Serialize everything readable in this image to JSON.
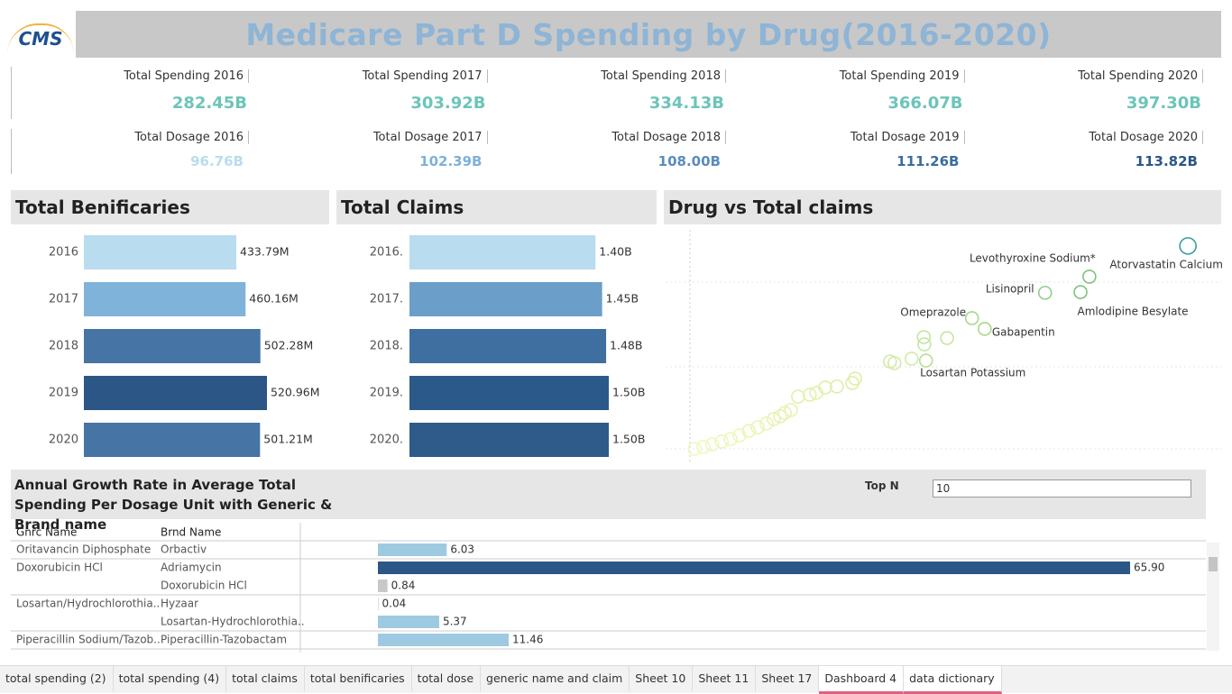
{
  "header": {
    "logo": "CMS",
    "title": "Medicare Part D Spending by Drug(2016-2020)"
  },
  "kpis": {
    "spending": {
      "labels": [
        "Total Spending 2016",
        "Total Spending 2017",
        "Total Spending 2018",
        "Total Spending 2019",
        "Total Spending 2020"
      ],
      "values": [
        "282.45B",
        "303.92B",
        "334.13B",
        "366.07B",
        "397.30B"
      ],
      "color": "#6cc5b8"
    },
    "dosage": {
      "labels": [
        "Total Dosage 2016",
        "Total Dosage 2017",
        "Total Dosage 2018",
        "Total Dosage 2019",
        "Total Dosage 2020"
      ],
      "values": [
        "96.76B",
        "102.39B",
        "108.00B",
        "111.26B",
        "113.82B"
      ],
      "colors": [
        "#b9dcef",
        "#7fb1d8",
        "#5a8cbc",
        "#3a6d9f",
        "#2b5686"
      ]
    }
  },
  "chart_data": [
    {
      "type": "bar",
      "title": "Total Benificaries",
      "categories": [
        "2016",
        "2017",
        "2018",
        "2019",
        "2020"
      ],
      "values": [
        433.79,
        460.16,
        502.28,
        520.96,
        501.21
      ],
      "value_labels": [
        "433.79M",
        "460.16M",
        "502.28M",
        "520.96M",
        "501.21M"
      ],
      "colors": [
        "#b9dcef",
        "#80b3da",
        "#4574a5",
        "#2b5686",
        "#4574a5"
      ]
    },
    {
      "type": "bar",
      "title": "Total Claims",
      "categories": [
        "2016.",
        "2017.",
        "2018.",
        "2019.",
        "2020."
      ],
      "values": [
        1.4,
        1.45,
        1.48,
        1.5,
        1.5
      ],
      "value_labels": [
        "1.40B",
        "1.45B",
        "1.48B",
        "1.50B",
        "1.50B"
      ],
      "colors": [
        "#b9dcef",
        "#6b9ec8",
        "#3f6fa0",
        "#2b5a8a",
        "#2e5b8a"
      ]
    },
    {
      "type": "scatter",
      "title": "Drug vs Total claims",
      "xlim": [
        0,
        100
      ],
      "ylim": [
        0,
        100
      ],
      "x": [
        94.0,
        76.2,
        74.6,
        68.2,
        55.0,
        57.3,
        46.7,
        46.3,
        46.4,
        50.5,
        44.1,
        40.2,
        41.0,
        33.9,
        33.4,
        30.6,
        28.5,
        26.9,
        25.7,
        23.6,
        22.3,
        21.2,
        20.4,
        19.2,
        17.9,
        16.3,
        14.7,
        13.0,
        11.4,
        9.8,
        8.1,
        6.5,
        4.9
      ],
      "y": [
        91.2,
        78.1,
        71.5,
        71.2,
        60.4,
        55.8,
        42.3,
        52.3,
        49.2,
        51.9,
        43.1,
        41.9,
        41.2,
        34.6,
        32.7,
        31.2,
        30.8,
        28.5,
        27.7,
        26.9,
        21.2,
        20.0,
        18.5,
        17.3,
        15.4,
        13.8,
        12.3,
        10.4,
        8.8,
        7.7,
        6.5,
        5.4,
        4.6
      ],
      "labels": [
        "Atorvastatin Calcium",
        "Levothyroxine Sodium*",
        "Amlodipine Besylate",
        "Lisinopril",
        "Omeprazole",
        "Gabapentin",
        "Losartan Potassium",
        null,
        null,
        null,
        null,
        null,
        null,
        null,
        null,
        null,
        null,
        null,
        null,
        null,
        null,
        null,
        null,
        null,
        null,
        null,
        null,
        null,
        null,
        null,
        null,
        null,
        null
      ],
      "colors": [
        "#3a9e9e",
        "#7cc47c",
        "#7cc47c",
        "#8fcf8a",
        "#a8d88a",
        "#a8d88a",
        "#b6df96",
        "#c6e6a0",
        "#c6e6a0",
        "#c6e6a0",
        "#d2eba6",
        "#d2eba6",
        "#d2eba6",
        "#dcefa8",
        "#dcefa8",
        "#dcefa8",
        "#dcefa8",
        "#e2f1ac",
        "#e2f1ac",
        "#e2f1ac",
        "#e6f2b0",
        "#e6f2b0",
        "#e6f2b0",
        "#e6f2b0",
        "#eaf4b4",
        "#eaf4b4",
        "#eaf4b4",
        "#eef6b8",
        "#eef6b8",
        "#eef6b8",
        "#f0f7bc",
        "#f0f7bc",
        "#f2f8c0"
      ]
    },
    {
      "type": "bar",
      "title": "Annual Growth Rate in Average Total Spending Per Dosage Unit with Generic & Brand name",
      "columns": [
        "Gnrc Name",
        "Brnd Name"
      ],
      "generic": [
        "Oritavancin Diphosphate",
        "Doxorubicin HCl",
        null,
        "Losartan/Hydrochlorothia..",
        null,
        "Piperacillin Sodium/Tazob.."
      ],
      "categories": [
        "Orbactiv",
        "Adriamycin",
        "Doxorubicin HCl",
        "Hyzaar",
        "Losartan-Hydrochlorothia..",
        "Piperacillin-Tazobactam"
      ],
      "values": [
        6.03,
        65.9,
        0.84,
        0.04,
        5.37,
        11.46
      ],
      "value_labels": [
        "6.03",
        "65.90",
        "0.84",
        "0.04",
        "5.37",
        "11.46"
      ],
      "colors": [
        "#9ecae1",
        "#2b5686",
        "#c8c8c8",
        "#9ecae1",
        "#9ecae1",
        "#9ecae1"
      ]
    }
  ],
  "filter": {
    "label": "Top N",
    "value": "10"
  },
  "tabs": [
    "total spending (2)",
    "total spending (4)",
    "total claims",
    "total benificaries",
    "total dose",
    "generic name and claim",
    "Sheet 10",
    "Sheet 11",
    "Sheet 17",
    "Dashboard 4",
    "data dictionary"
  ],
  "active_tab": 9
}
